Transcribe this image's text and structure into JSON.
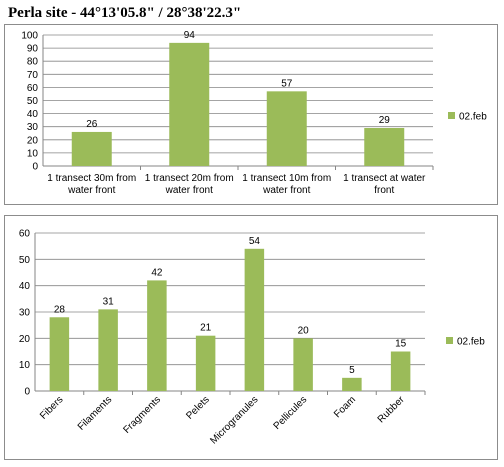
{
  "title": "Perla site - 44°13'05.8\" / 28°38'22.3\"",
  "chart_data": [
    {
      "type": "bar",
      "categories": [
        "1  transect 30m  from water front",
        "1  transect 20m  from water front",
        "1  transect 10m  from water front",
        "1  transect at water front"
      ],
      "category_lines": [
        [
          "1  transect 30m  from",
          "water front"
        ],
        [
          "1  transect 20m  from",
          "water front"
        ],
        [
          "1  transect 10m  from",
          "water front"
        ],
        [
          "1  transect at water",
          "front"
        ]
      ],
      "series": [
        {
          "name": "02.feb",
          "values": [
            26,
            94,
            57,
            29
          ],
          "color": "#9bbb59"
        }
      ],
      "ylim": [
        0,
        100
      ],
      "yticks": [
        0,
        10,
        20,
        30,
        40,
        50,
        60,
        70,
        80,
        90,
        100
      ],
      "grid": true,
      "legend": "right"
    },
    {
      "type": "bar",
      "categories": [
        "Fibers",
        "Filaments",
        "Fragments",
        "Pelets",
        "Microgranules",
        "Pellicules",
        "Foam",
        "Rubber"
      ],
      "series": [
        {
          "name": "02.feb",
          "values": [
            28,
            31,
            42,
            21,
            54,
            20,
            5,
            15
          ],
          "color": "#9bbb59"
        }
      ],
      "ylim": [
        0,
        60
      ],
      "yticks": [
        0,
        10,
        20,
        30,
        40,
        50,
        60
      ],
      "grid": true,
      "legend": "right",
      "xtick_rotation": "-45deg"
    }
  ]
}
